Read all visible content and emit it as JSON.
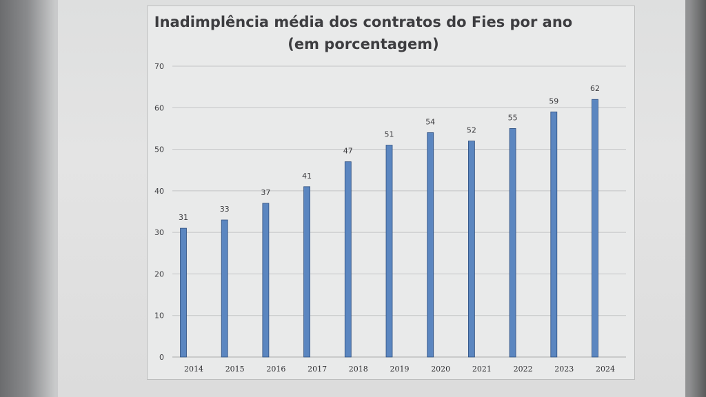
{
  "chart_data": {
    "type": "bar",
    "title_line1": "Inadimplência média dos contratos do Fies por ano",
    "title_line2": "(em porcentagem)",
    "categories": [
      "2014",
      "2015",
      "2016",
      "2017",
      "2018",
      "2019",
      "2020",
      "2021",
      "2022",
      "2023",
      "2024"
    ],
    "values": [
      31,
      33,
      37,
      41,
      47,
      51,
      54,
      52,
      55,
      59,
      62
    ],
    "ylim": [
      0,
      70
    ],
    "yticks": [
      0,
      10,
      20,
      30,
      40,
      50,
      60,
      70
    ],
    "xlabel": "",
    "ylabel": "",
    "grid": true,
    "legend": "none",
    "bar_color": "#5b86c0",
    "bar_edge_color": "#2f4f7f"
  }
}
